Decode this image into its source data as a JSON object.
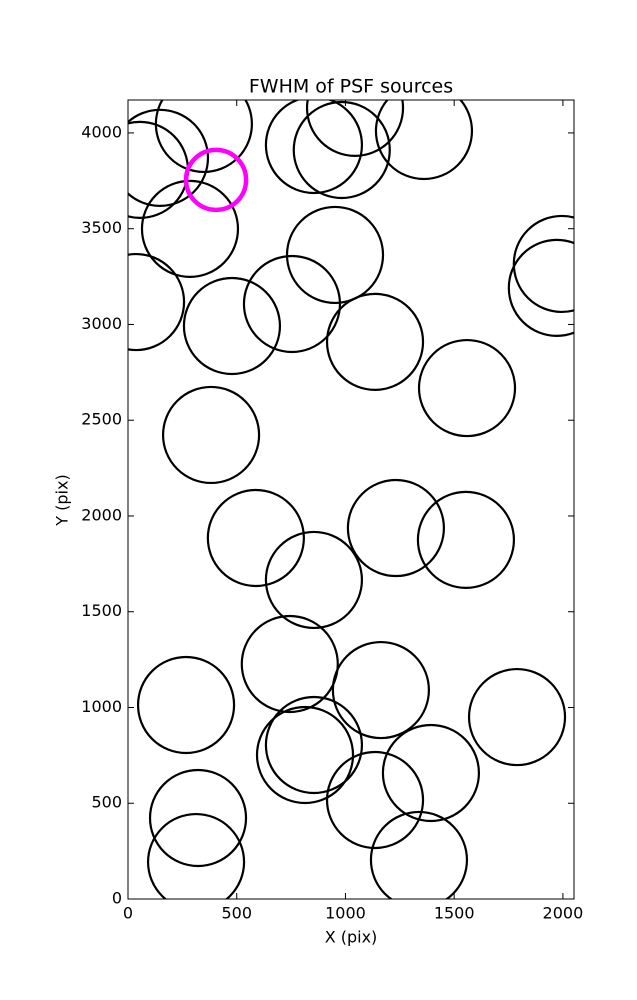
{
  "chart_data": {
    "type": "scatter",
    "title": "FWHM of PSF sources",
    "x_label": "X (pix)",
    "y_label": "Y (pix)",
    "xlim": [
      0,
      2051
    ],
    "ylim": [
      0,
      4172
    ],
    "xticks": [
      0,
      500,
      1000,
      1500,
      2000
    ],
    "yticks": [
      0,
      500,
      1000,
      1500,
      2000,
      2500,
      3000,
      3500,
      4000
    ],
    "series": [
      {
        "color": "#000000",
        "marker": "open-circle",
        "x": [
          349,
          55,
          147,
          285,
          37,
          478,
          754,
          952,
          855,
          983,
          1044,
          1361,
          1136,
          1559,
          1995,
          1972,
          382,
          588,
          855,
          1232,
          1554,
          744,
          1163,
          267,
          1789,
          814,
          855,
          1393,
          1136,
          322,
          313,
          1338
        ],
        "values": [
          4047,
          3807,
          3870,
          3499,
          3117,
          2992,
          3107,
          3363,
          3937,
          3911,
          4131,
          4010,
          2909,
          2668,
          3316,
          3191,
          2423,
          1885,
          1666,
          1937,
          1875,
          1227,
          1091,
          1013,
          950,
          752,
          804,
          658,
          517,
          423,
          193,
          204
        ]
      },
      {
        "color": "#ff00ff",
        "marker": "open-circle",
        "x": [
          405
        ],
        "values": [
          3755
        ]
      }
    ]
  }
}
